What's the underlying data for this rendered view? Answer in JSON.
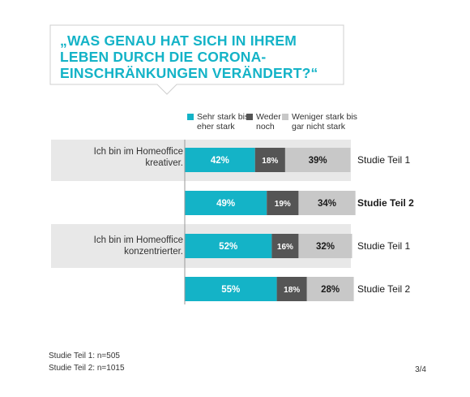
{
  "title": "„WAS GENAU HAT SICH IN IHREM LEBEN DURCH DIE CORONA-EINSCHRÄNKUNGEN VERÄNDERT?“",
  "colors": {
    "accent": "#14b3c7",
    "series_1": "#14b3c7",
    "series_2": "#555555",
    "series_3": "#c8c8c8",
    "band": "#e8e8e8"
  },
  "legend": [
    {
      "label": "Sehr stark bis\neher stark",
      "color": "#14b3c7"
    },
    {
      "label": "Weder\nnoch",
      "color": "#555555"
    },
    {
      "label": "Weniger stark bis\ngar nicht stark",
      "color": "#c8c8c8"
    }
  ],
  "questions": [
    {
      "label": "Ich bin im Homeoffice\nkreativer."
    },
    {
      "label": "Ich bin im Homeoffice\nkonzentrierter."
    }
  ],
  "chart_data": {
    "type": "bar",
    "orientation": "horizontal",
    "stacked": true,
    "title": "„WAS GENAU HAT SICH IN IHREM LEBEN DURCH DIE CORONA-EINSCHRÄNKUNGEN VERÄNDERT?“",
    "categories": [
      "Studie Teil 1",
      "Studie Teil 2",
      "Studie Teil 1",
      "Studie Teil 2"
    ],
    "groups": [
      "Ich bin im Homeoffice kreativer.",
      "Ich bin im Homeoffice konzentrierter."
    ],
    "series": [
      {
        "name": "Sehr stark bis eher stark",
        "values": [
          42,
          49,
          52,
          55
        ],
        "labels": [
          "42%",
          "49%",
          "52%",
          "55%"
        ]
      },
      {
        "name": "Weder noch",
        "values": [
          18,
          19,
          16,
          18
        ],
        "labels": [
          "18%",
          "19%",
          "16%",
          "18%"
        ]
      },
      {
        "name": "Weniger stark bis gar nicht stark",
        "values": [
          39,
          34,
          32,
          28
        ],
        "labels": [
          "39%",
          "34%",
          "32%",
          "28%"
        ]
      }
    ],
    "bold_category_rows": [
      1
    ]
  },
  "footnotes": [
    "Studie Teil 1: n=505",
    "Studie Teil 2: n=1015"
  ],
  "page_number": "3/4"
}
